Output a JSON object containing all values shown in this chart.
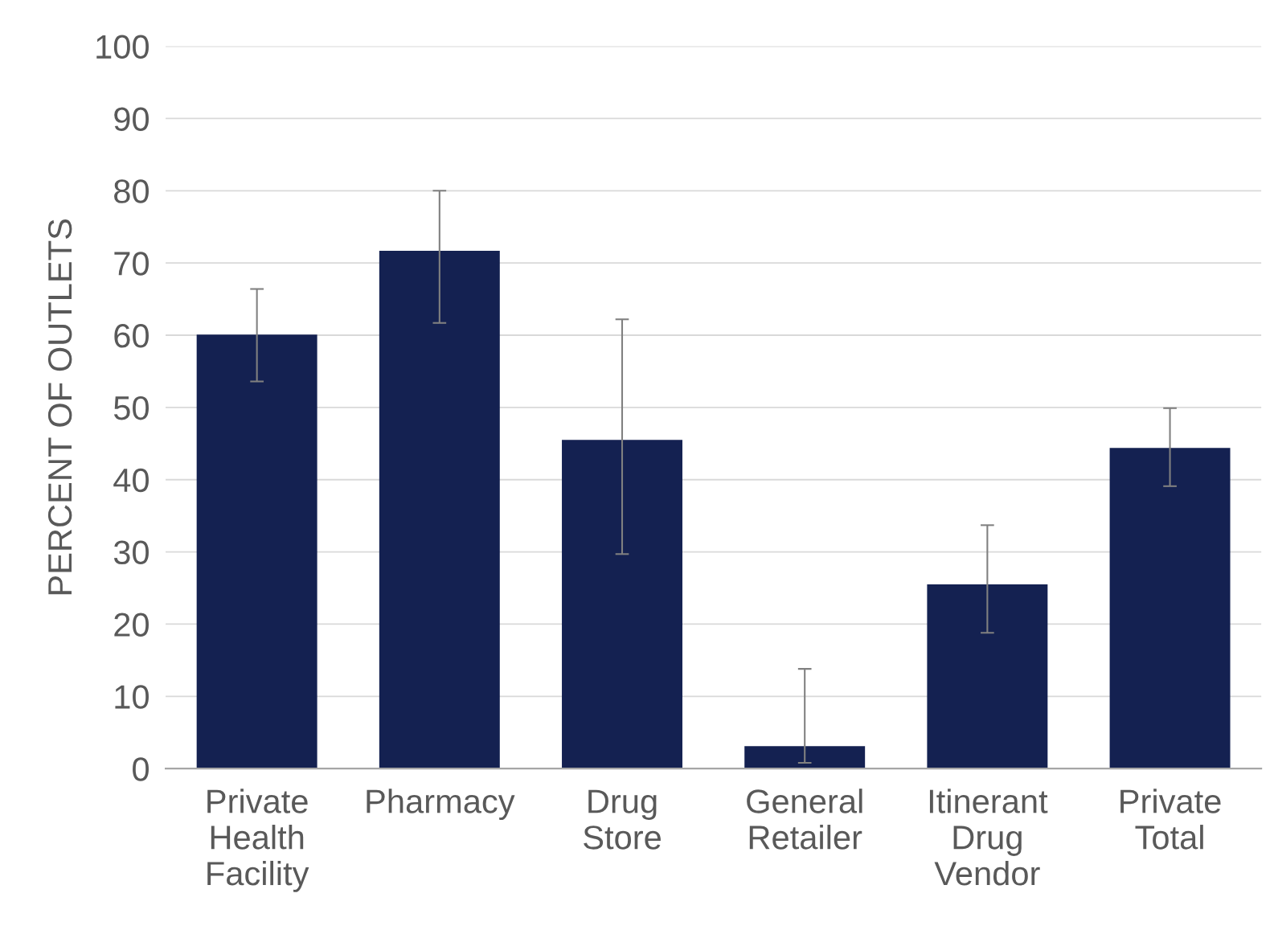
{
  "chart_data": {
    "type": "bar",
    "ylabel": "PERCENT OF OUTLETS",
    "categories": [
      "Private\nHealth\nFacility",
      "Pharmacy",
      "Drug\nStore",
      "General\nRetailer",
      "Itinerant\nDrug\nVendor",
      "Private\nTotal"
    ],
    "values": [
      60.1,
      71.7,
      45.5,
      3.1,
      25.5,
      44.4
    ],
    "errors": [
      [
        53.6,
        66.4
      ],
      [
        61.7,
        80.0
      ],
      [
        29.7,
        62.2
      ],
      [
        0.8,
        13.8
      ],
      [
        18.8,
        33.7
      ],
      [
        39.1,
        49.9
      ]
    ],
    "color": "#142151",
    "ylim": [
      0,
      100
    ],
    "yticks": [
      0,
      10,
      20,
      30,
      40,
      50,
      60,
      70,
      80,
      90,
      100
    ],
    "grid": "y"
  }
}
